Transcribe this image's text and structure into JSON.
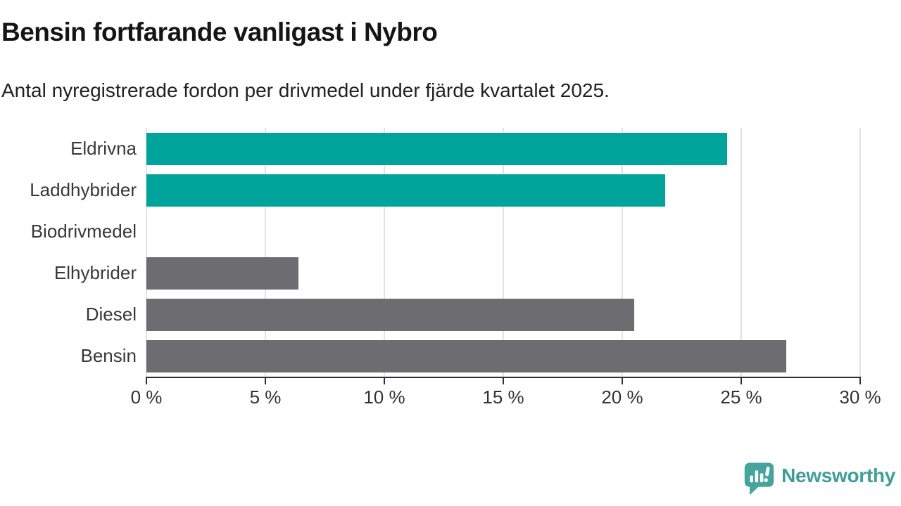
{
  "chart_data": {
    "type": "bar",
    "orientation": "horizontal",
    "title": "Bensin fortfarande vanligast i Nybro",
    "subtitle": "Antal nyregistrerade fordon per drivmedel under fjärde kvartalet 2025.",
    "categories": [
      "Eldrivna",
      "Laddhybrider",
      "Biodrivmedel",
      "Elhybrider",
      "Diesel",
      "Bensin"
    ],
    "values": [
      24.4,
      21.8,
      0,
      6.4,
      20.5,
      26.9
    ],
    "unit": "%",
    "xlim": [
      0,
      30
    ],
    "xticks": [
      0,
      5,
      10,
      15,
      20,
      25,
      30
    ],
    "xtick_labels": [
      "0 %",
      "5 %",
      "10 %",
      "15 %",
      "20 %",
      "25 %",
      "30 %"
    ],
    "grid": "vertical-only",
    "legend": "none",
    "colors": {
      "highlight": "#00a49a",
      "default": "#6c6c71",
      "per_bar": [
        "#00a49a",
        "#00a49a",
        "#6c6c71",
        "#6c6c71",
        "#6c6c71",
        "#6c6c71"
      ]
    }
  },
  "branding": {
    "name": "Newsworthy",
    "text_color": "#3f9e97",
    "icon_color": "#45a49d",
    "icon": "newsworthy-speech-bubble-chart-icon"
  }
}
